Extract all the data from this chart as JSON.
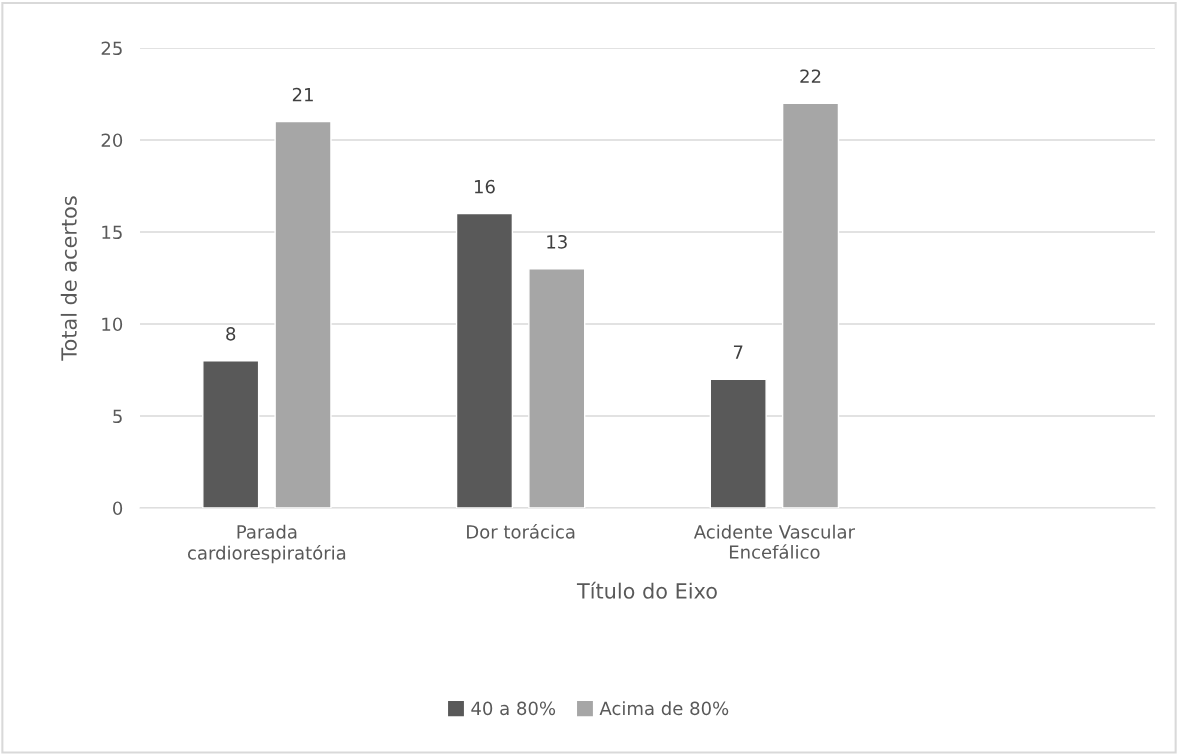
{
  "chart_data": {
    "type": "bar",
    "xlabel": "Título do Eixo",
    "ylabel": "Total de acertos",
    "categories": [
      "Parada\ncardiorespiratória",
      "Dor torácica",
      "Acidente Vascular\nEncefálico",
      null
    ],
    "series": [
      {
        "name": "40 a 80%",
        "color": "#595959",
        "values": [
          8,
          16,
          7,
          null
        ]
      },
      {
        "name": "Acima de 80%",
        "color": "#a6a6a6",
        "values": [
          21,
          13,
          22,
          null
        ]
      }
    ],
    "ylim": [
      0,
      25
    ],
    "yticks": [
      0,
      5,
      10,
      15,
      20,
      25
    ],
    "grid": "y",
    "legend": "bottom",
    "data_labels": true
  }
}
